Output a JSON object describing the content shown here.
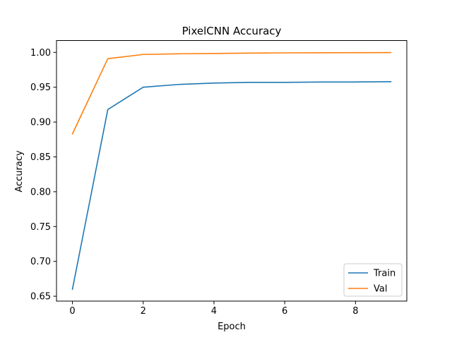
{
  "chart_data": {
    "type": "line",
    "title": "PixelCNN Accuracy",
    "xlabel": "Epoch",
    "ylabel": "Accuracy",
    "x": [
      0,
      1,
      2,
      3,
      4,
      5,
      6,
      7,
      8,
      9
    ],
    "xlim": [
      -0.45,
      9.45
    ],
    "ylim": [
      0.643,
      1.017
    ],
    "xticks": [
      0,
      2,
      4,
      6,
      8
    ],
    "xtick_labels": [
      "0",
      "2",
      "4",
      "6",
      "8"
    ],
    "yticks": [
      0.65,
      0.7,
      0.75,
      0.8,
      0.85,
      0.9,
      0.95,
      1.0
    ],
    "ytick_labels": [
      "0.65",
      "0.70",
      "0.75",
      "0.80",
      "0.85",
      "0.90",
      "0.95",
      "1.00"
    ],
    "grid": false,
    "legend_position": "lower-right",
    "series": [
      {
        "name": "Train",
        "color": "#1f77b4",
        "values": [
          0.66,
          0.918,
          0.95,
          0.954,
          0.956,
          0.957,
          0.957,
          0.9575,
          0.9575,
          0.958
        ]
      },
      {
        "name": "Val",
        "color": "#ff7f0e",
        "values": [
          0.883,
          0.991,
          0.997,
          0.998,
          0.9985,
          0.999,
          0.9993,
          0.9995,
          0.9996,
          0.9997
        ]
      }
    ]
  }
}
